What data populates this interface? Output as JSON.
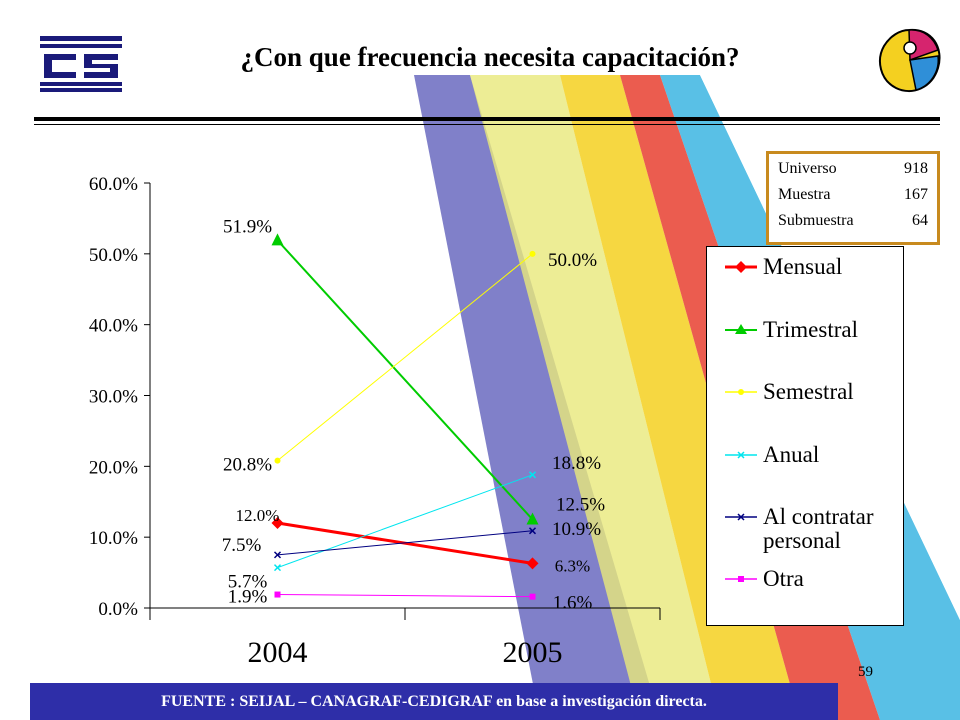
{
  "title": "¿Con que frecuencia necesita capacitación?",
  "info_box": {
    "rows": [
      {
        "label": "Universo",
        "value": "918"
      },
      {
        "label": "Muestra",
        "value": "167"
      },
      {
        "label": "Submuestra",
        "value": "64"
      }
    ],
    "border_color": "#c88a1e"
  },
  "page_number": "59",
  "footer": "FUENTE : SEIJAL – CANAGRAF-CEDIGRAF en base a investigación directa.",
  "logos": {
    "left": "cedigraf-logo",
    "right": "canagraf-logo"
  },
  "chart_data": {
    "type": "line",
    "categories": [
      "2004",
      "2005"
    ],
    "ylim": [
      0,
      60
    ],
    "yticks": [
      "0.0%",
      "10.0%",
      "20.0%",
      "30.0%",
      "40.0%",
      "50.0%",
      "60.0%"
    ],
    "grid": false,
    "legend_position": "right",
    "series": [
      {
        "name": "Mensual",
        "values": [
          12.0,
          6.3
        ],
        "labels": [
          "12.0%",
          "6.3%"
        ],
        "color": "#ff0000",
        "marker": "diamond",
        "width": 3
      },
      {
        "name": "Trimestral",
        "values": [
          51.9,
          12.5
        ],
        "labels": [
          "51.9%",
          "12.5%"
        ],
        "color": "#00cc00",
        "marker": "triangle",
        "width": 2
      },
      {
        "name": "Semestral",
        "values": [
          20.8,
          50.0
        ],
        "labels": [
          "20.8%",
          "50.0%"
        ],
        "color": "#ffff00",
        "marker": "dot",
        "width": 1
      },
      {
        "name": "Anual",
        "values": [
          5.7,
          18.8
        ],
        "labels": [
          "5.7%",
          "18.8%"
        ],
        "color": "#00e5ee",
        "marker": "x",
        "width": 1
      },
      {
        "name": "Al contratar personal",
        "values": [
          7.5,
          10.9
        ],
        "labels": [
          "7.5%",
          "10.9%"
        ],
        "color": "#000080",
        "marker": "x",
        "width": 1
      },
      {
        "name": "Otra",
        "values": [
          1.9,
          1.6
        ],
        "labels": [
          "1.9%",
          "1.6%"
        ],
        "color": "#ff00ff",
        "marker": "square",
        "width": 1
      }
    ]
  }
}
